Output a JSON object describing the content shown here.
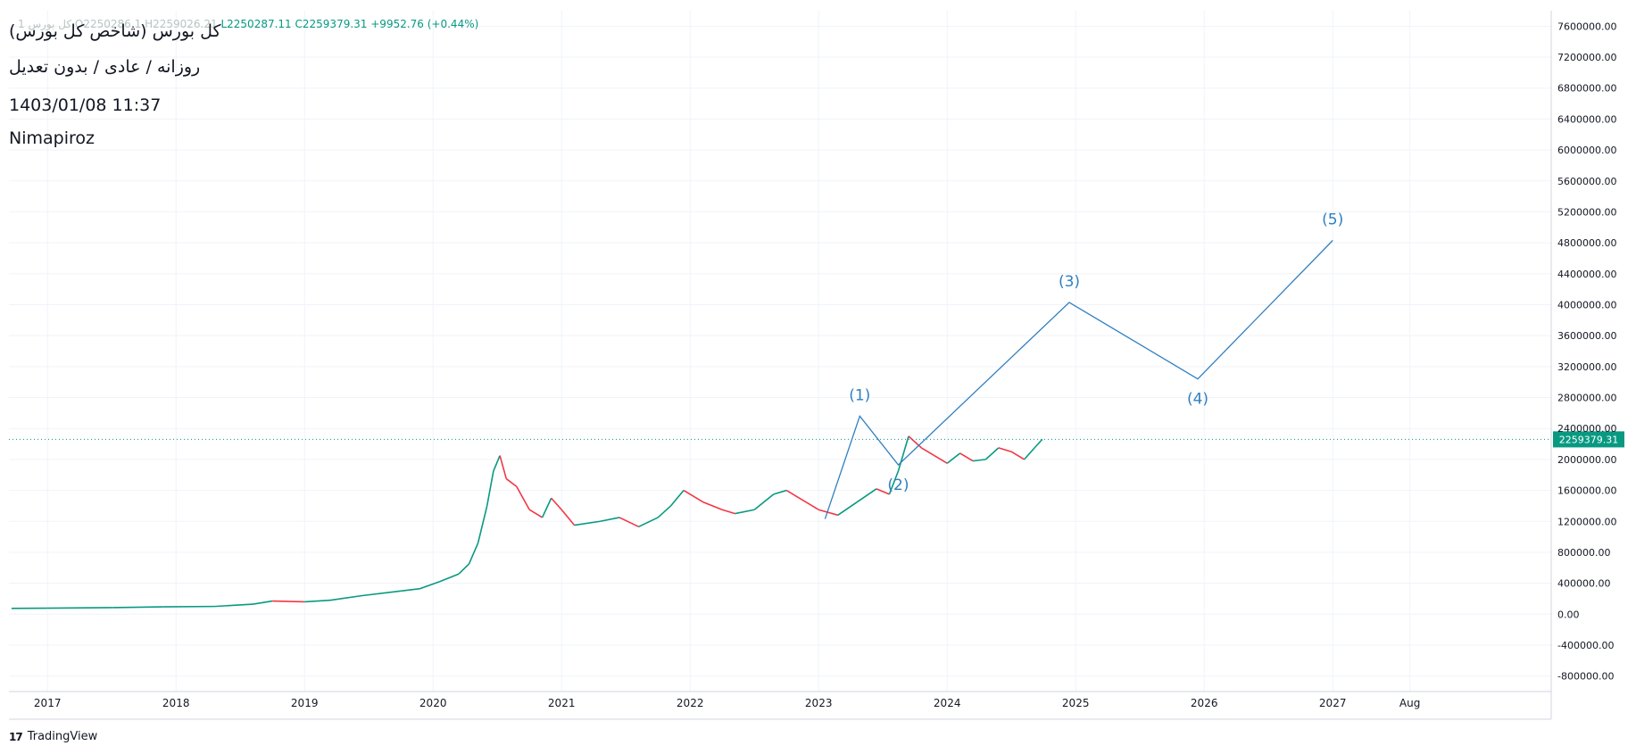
{
  "legend": {
    "symbol_faded": "کل بورس",
    "interval_faded": "1",
    "open_faded": "O2250286.1",
    "high_faded": "H2259026.21",
    "low": "L2250287.11",
    "close": "C2259379.31",
    "change": "+9952.76 (+0.44%)"
  },
  "info": {
    "line1": "کل بورس (شاخص کل بورس)",
    "line2": "روزانه / عادی / بدون تعدیل",
    "line3": "1403/01/08 11:37",
    "line4": "Nimapiroz"
  },
  "footer": {
    "logo": "17",
    "brand": "TradingView"
  },
  "colors": {
    "up": "#089981",
    "down": "#f23645",
    "wave": "#2f7fc1",
    "price_tag": "#089981",
    "grid": "#f0f3fa",
    "axis_text": "#131722"
  },
  "chart_data": {
    "type": "line",
    "title": "",
    "ylim": [
      -1000000,
      7800000
    ],
    "xlim": [
      2016.7,
      2028.7
    ],
    "grid": true,
    "y_ticks": [
      "7600000.00",
      "7200000.00",
      "6800000.00",
      "6400000.00",
      "6000000.00",
      "5600000.00",
      "5200000.00",
      "4800000.00",
      "4400000.00",
      "4000000.00",
      "3600000.00",
      "3200000.00",
      "2800000.00",
      "2400000.00",
      "2000000.00",
      "1600000.00",
      "1200000.00",
      "800000.00",
      "400000.00",
      "0.00",
      "-400000.00",
      "-800000.00"
    ],
    "y_tick_values": [
      7600000,
      7200000,
      6800000,
      6400000,
      6000000,
      5600000,
      5200000,
      4800000,
      4400000,
      4000000,
      3600000,
      3200000,
      2800000,
      2400000,
      2000000,
      1600000,
      1200000,
      800000,
      400000,
      0,
      -400000,
      -800000
    ],
    "x_ticks": [
      {
        "label": "2017",
        "x": 2017.0
      },
      {
        "label": "2018",
        "x": 2018.0
      },
      {
        "label": "2019",
        "x": 2019.0
      },
      {
        "label": "2020",
        "x": 2020.0
      },
      {
        "label": "2021",
        "x": 2021.0
      },
      {
        "label": "2022",
        "x": 2022.0
      },
      {
        "label": "2023",
        "x": 2023.0
      },
      {
        "label": "2024",
        "x": 2024.0
      },
      {
        "label": "2025",
        "x": 2025.0
      },
      {
        "label": "2026",
        "x": 2026.0
      },
      {
        "label": "2027",
        "x": 2027.0
      },
      {
        "label": "Aug",
        "x": 2027.6
      }
    ],
    "last_price": 2259379.31,
    "last_price_label": "2259379.31",
    "price_series": {
      "name": "",
      "points": [
        [
          2016.72,
          75000
        ],
        [
          2017.0,
          78000
        ],
        [
          2017.5,
          85000
        ],
        [
          2017.9,
          95000
        ],
        [
          2018.3,
          100000
        ],
        [
          2018.6,
          130000
        ],
        [
          2018.75,
          170000
        ],
        [
          2019.0,
          160000
        ],
        [
          2019.2,
          180000
        ],
        [
          2019.45,
          240000
        ],
        [
          2019.75,
          300000
        ],
        [
          2019.9,
          330000
        ],
        [
          2020.05,
          420000
        ],
        [
          2020.2,
          520000
        ],
        [
          2020.28,
          650000
        ],
        [
          2020.35,
          920000
        ],
        [
          2020.42,
          1400000
        ],
        [
          2020.47,
          1850000
        ],
        [
          2020.52,
          2050000
        ],
        [
          2020.57,
          1750000
        ],
        [
          2020.65,
          1650000
        ],
        [
          2020.75,
          1350000
        ],
        [
          2020.85,
          1250000
        ],
        [
          2020.92,
          1500000
        ],
        [
          2021.0,
          1350000
        ],
        [
          2021.1,
          1150000
        ],
        [
          2021.3,
          1200000
        ],
        [
          2021.45,
          1250000
        ],
        [
          2021.6,
          1130000
        ],
        [
          2021.75,
          1250000
        ],
        [
          2021.85,
          1400000
        ],
        [
          2021.95,
          1600000
        ],
        [
          2022.1,
          1450000
        ],
        [
          2022.25,
          1350000
        ],
        [
          2022.35,
          1300000
        ],
        [
          2022.5,
          1350000
        ],
        [
          2022.65,
          1550000
        ],
        [
          2022.75,
          1600000
        ],
        [
          2022.9,
          1450000
        ],
        [
          2023.0,
          1350000
        ],
        [
          2023.15,
          1280000
        ],
        [
          2023.3,
          1450000
        ],
        [
          2023.45,
          1620000
        ],
        [
          2023.55,
          1550000
        ],
        [
          2023.62,
          1850000
        ],
        [
          2023.7,
          2300000
        ],
        [
          2023.8,
          2150000
        ],
        [
          2023.9,
          2050000
        ],
        [
          2024.0,
          1950000
        ],
        [
          2024.1,
          2080000
        ],
        [
          2024.2,
          1980000
        ],
        [
          2024.3,
          2000000
        ],
        [
          2024.4,
          2150000
        ],
        [
          2024.5,
          2100000
        ],
        [
          2024.6,
          2000000
        ],
        [
          2024.68,
          2150000
        ],
        [
          2024.74,
          2259379
        ]
      ]
    },
    "elliott_wave": {
      "points": [
        {
          "label": "",
          "x": 2023.05,
          "y": 1230000
        },
        {
          "label": "(1)",
          "x": 2023.32,
          "y": 2560000
        },
        {
          "label": "(2)",
          "x": 2023.62,
          "y": 1930000
        },
        {
          "label": "(3)",
          "x": 2024.95,
          "y": 4030000
        },
        {
          "label": "(4)",
          "x": 2025.95,
          "y": 3040000
        },
        {
          "label": "(5)",
          "x": 2027.0,
          "y": 4830000
        }
      ]
    }
  }
}
